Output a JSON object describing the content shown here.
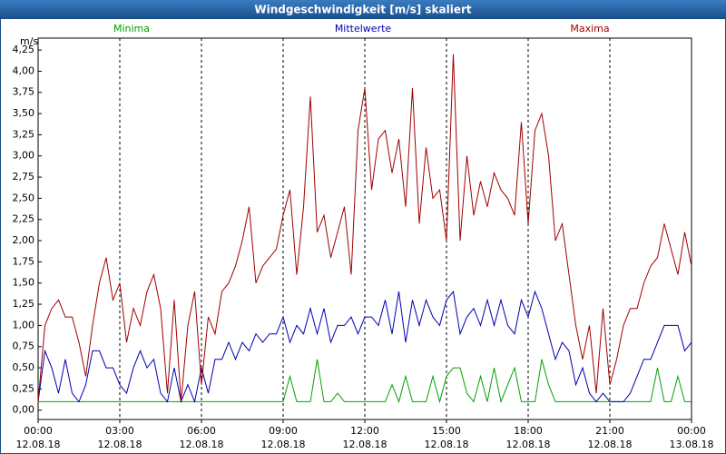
{
  "chart_data": {
    "type": "line",
    "title": "Windgeschwindigkeit [m/s] skaliert",
    "y_label": "m/s",
    "x": [
      0,
      0.25,
      0.5,
      0.75,
      1,
      1.25,
      1.5,
      1.75,
      2,
      2.25,
      2.5,
      2.75,
      3,
      3.25,
      3.5,
      3.75,
      4,
      4.25,
      4.5,
      4.75,
      5,
      5.25,
      5.5,
      5.75,
      6,
      6.25,
      6.5,
      6.75,
      7,
      7.25,
      7.5,
      7.75,
      8,
      8.25,
      8.5,
      8.75,
      9,
      9.25,
      9.5,
      9.75,
      10,
      10.25,
      10.5,
      10.75,
      11,
      11.25,
      11.5,
      11.75,
      12,
      12.25,
      12.5,
      12.75,
      13,
      13.25,
      13.5,
      13.75,
      14,
      14.25,
      14.5,
      14.75,
      15,
      15.25,
      15.5,
      15.75,
      16,
      16.25,
      16.5,
      16.75,
      17,
      17.25,
      17.5,
      17.75,
      18,
      18.25,
      18.5,
      18.75,
      19,
      19.25,
      19.5,
      19.75,
      20,
      20.25,
      20.5,
      20.75,
      21,
      21.25,
      21.5,
      21.75,
      22,
      22.25,
      22.5,
      22.75,
      23,
      23.25,
      23.5,
      23.75,
      24
    ],
    "series": [
      {
        "name": "Minima",
        "color": "#00a000",
        "values": [
          0.1,
          0.1,
          0.1,
          0.1,
          0.1,
          0.1,
          0.1,
          0.1,
          0.1,
          0.1,
          0.1,
          0.1,
          0.1,
          0.1,
          0.1,
          0.1,
          0.1,
          0.1,
          0.1,
          0.1,
          0.1,
          0.1,
          0.1,
          0.1,
          0.1,
          0.1,
          0.1,
          0.1,
          0.1,
          0.1,
          0.1,
          0.1,
          0.1,
          0.1,
          0.1,
          0.1,
          0.1,
          0.4,
          0.1,
          0.1,
          0.1,
          0.6,
          0.1,
          0.1,
          0.2,
          0.1,
          0.1,
          0.1,
          0.1,
          0.1,
          0.1,
          0.1,
          0.3,
          0.1,
          0.4,
          0.1,
          0.1,
          0.1,
          0.4,
          0.1,
          0.4,
          0.5,
          0.5,
          0.2,
          0.1,
          0.4,
          0.1,
          0.5,
          0.1,
          0.3,
          0.5,
          0.1,
          0.1,
          0.1,
          0.6,
          0.3,
          0.1,
          0.1,
          0.1,
          0.1,
          0.1,
          0.1,
          0.1,
          0.1,
          0.1,
          0.1,
          0.1,
          0.1,
          0.1,
          0.1,
          0.1,
          0.5,
          0.1,
          0.1,
          0.4,
          0.1,
          0.1
        ]
      },
      {
        "name": "Mittelwerte",
        "color": "#0000b0",
        "values": [
          0.1,
          0.7,
          0.5,
          0.2,
          0.6,
          0.2,
          0.1,
          0.3,
          0.7,
          0.7,
          0.5,
          0.5,
          0.3,
          0.2,
          0.5,
          0.7,
          0.5,
          0.6,
          0.2,
          0.1,
          0.5,
          0.1,
          0.3,
          0.1,
          0.5,
          0.2,
          0.6,
          0.6,
          0.8,
          0.6,
          0.8,
          0.7,
          0.9,
          0.8,
          0.9,
          0.9,
          1.1,
          0.8,
          1.0,
          0.9,
          1.2,
          0.9,
          1.2,
          0.8,
          1.0,
          1.0,
          1.1,
          0.9,
          1.1,
          1.1,
          1.0,
          1.3,
          0.9,
          1.4,
          0.8,
          1.3,
          1.0,
          1.3,
          1.1,
          1.0,
          1.3,
          1.4,
          0.9,
          1.1,
          1.2,
          1.0,
          1.3,
          1.0,
          1.3,
          1.0,
          0.9,
          1.3,
          1.1,
          1.4,
          1.2,
          0.9,
          0.6,
          0.8,
          0.7,
          0.3,
          0.5,
          0.2,
          0.1,
          0.2,
          0.1,
          0.1,
          0.1,
          0.2,
          0.4,
          0.6,
          0.6,
          0.8,
          1.0,
          1.0,
          1.0,
          0.7,
          0.8
        ]
      },
      {
        "name": "Maxima",
        "color": "#a00000",
        "values": [
          0.1,
          1.0,
          1.2,
          1.3,
          1.1,
          1.1,
          0.8,
          0.4,
          1.0,
          1.5,
          1.8,
          1.3,
          1.5,
          0.8,
          1.2,
          1.0,
          1.4,
          1.6,
          1.2,
          0.2,
          1.3,
          0.1,
          1.0,
          1.4,
          0.3,
          1.1,
          0.9,
          1.4,
          1.5,
          1.7,
          2.0,
          2.4,
          1.5,
          1.7,
          1.8,
          1.9,
          2.3,
          2.6,
          1.6,
          2.4,
          3.7,
          2.1,
          2.3,
          1.8,
          2.1,
          2.4,
          1.6,
          3.3,
          3.8,
          2.6,
          3.2,
          3.3,
          2.8,
          3.2,
          2.4,
          3.8,
          2.2,
          3.1,
          2.5,
          2.6,
          2.0,
          4.2,
          2.0,
          3.0,
          2.3,
          2.7,
          2.4,
          2.8,
          2.6,
          2.5,
          2.3,
          3.4,
          2.2,
          3.3,
          3.5,
          3.0,
          2.0,
          2.2,
          1.6,
          1.0,
          0.6,
          1.0,
          0.2,
          1.2,
          0.3,
          0.6,
          1.0,
          1.2,
          1.2,
          1.5,
          1.7,
          1.8,
          2.2,
          1.9,
          1.6,
          2.1,
          1.7
        ]
      }
    ],
    "xlim": [
      0,
      24
    ],
    "xticks": [
      {
        "value": 0,
        "label": "00:00",
        "date": "12.08.18"
      },
      {
        "value": 3,
        "label": "03:00",
        "date": "12.08.18"
      },
      {
        "value": 6,
        "label": "06:00",
        "date": "12.08.18"
      },
      {
        "value": 9,
        "label": "09:00",
        "date": "12.08.18"
      },
      {
        "value": 12,
        "label": "12:00",
        "date": "12.08.18"
      },
      {
        "value": 15,
        "label": "15:00",
        "date": "12.08.18"
      },
      {
        "value": 18,
        "label": "18:00",
        "date": "12.08.18"
      },
      {
        "value": 21,
        "label": "21:00",
        "date": "12.08.18"
      },
      {
        "value": 24,
        "label": "00:00",
        "date": "13.08.18"
      }
    ],
    "ylim": [
      -0.11,
      4.39
    ],
    "yticks": [
      {
        "value": 0,
        "label": "0,00"
      },
      {
        "value": 0.25,
        "label": "0,25"
      },
      {
        "value": 0.5,
        "label": "0,50"
      },
      {
        "value": 0.75,
        "label": "0,75"
      },
      {
        "value": 1,
        "label": "1,00"
      },
      {
        "value": 1.25,
        "label": "1,25"
      },
      {
        "value": 1.5,
        "label": "1,50"
      },
      {
        "value": 1.75,
        "label": "1,75"
      },
      {
        "value": 2,
        "label": "2,00"
      },
      {
        "value": 2.25,
        "label": "2,25"
      },
      {
        "value": 2.5,
        "label": "2,50"
      },
      {
        "value": 2.75,
        "label": "2,75"
      },
      {
        "value": 3,
        "label": "3,00"
      },
      {
        "value": 3.25,
        "label": "3,25"
      },
      {
        "value": 3.5,
        "label": "3,50"
      },
      {
        "value": 3.75,
        "label": "3,75"
      },
      {
        "value": 4,
        "label": "4,00"
      },
      {
        "value": 4.25,
        "label": "4,25"
      }
    ],
    "grid": "x"
  }
}
